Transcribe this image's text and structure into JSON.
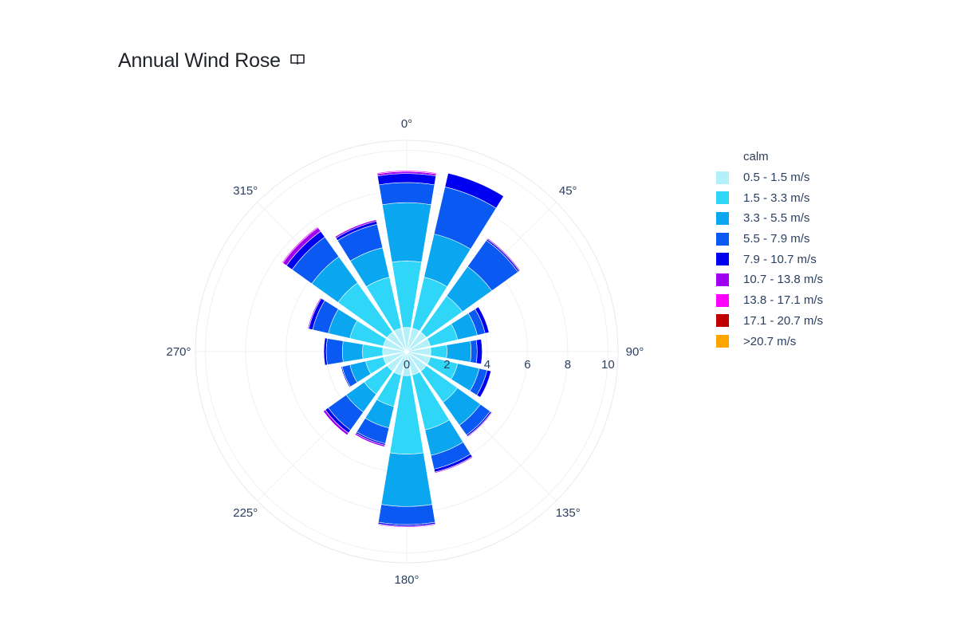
{
  "title": "Annual Wind Rose",
  "title_icon": "book-icon",
  "chart_data": {
    "type": "barpolar",
    "title": "Annual Wind Rose",
    "angular_axis": {
      "direction": "clockwise",
      "rotation": 90,
      "tick_labels": [
        "0°",
        "45°",
        "90°",
        "135°",
        "180°",
        "225°",
        "270°",
        "315°"
      ]
    },
    "radial_axis": {
      "range": [
        0,
        10.5
      ],
      "tick_values": [
        0,
        2,
        4,
        6,
        8,
        10
      ],
      "tick_labels": [
        "0",
        "2",
        "4",
        "6",
        "8",
        "10"
      ]
    },
    "directions_deg": [
      0,
      22.5,
      45,
      67.5,
      90,
      112.5,
      135,
      157.5,
      180,
      202.5,
      225,
      247.5,
      270,
      292.5,
      315,
      337.5
    ],
    "series": [
      {
        "name": "calm",
        "color": "#ffffff",
        "values": [
          0,
          0,
          0,
          0,
          0,
          0,
          0,
          0,
          0,
          0,
          0,
          0,
          0,
          0,
          0,
          0
        ]
      },
      {
        "name": "0.5 - 1.5 m/s",
        "color": "#b3f0fa",
        "values": [
          1.2,
          1.2,
          1.2,
          1.2,
          1.2,
          1.2,
          1.2,
          1.2,
          1.2,
          1.2,
          1.2,
          1.2,
          1.2,
          1.2,
          1.2,
          1.2
        ]
      },
      {
        "name": "1.5 - 3.3 m/s",
        "color": "#2fd6f7",
        "values": [
          3.3,
          2.6,
          2.2,
          1.4,
          0.8,
          1.4,
          1.9,
          2.8,
          3.9,
          1.6,
          1.4,
          0.9,
          1.0,
          1.7,
          3.0,
          2.6
        ]
      },
      {
        "name": "3.3 - 5.5 m/s",
        "color": "#0aa7f0",
        "values": [
          2.9,
          2.2,
          1.8,
          1.0,
          1.2,
          1.1,
          1.4,
          1.3,
          2.6,
          1.1,
          1.1,
          0.8,
          1.0,
          1.1,
          1.6,
          1.5
        ]
      },
      {
        "name": "5.5 - 7.9 m/s",
        "color": "#0a59f2",
        "values": [
          1.0,
          2.4,
          1.6,
          0.4,
          0.3,
          0.4,
          0.6,
          0.7,
          0.9,
          0.8,
          1.1,
          0.4,
          0.8,
          0.8,
          1.2,
          1.2
        ]
      },
      {
        "name": "7.9 - 10.7 m/s",
        "color": "#0000f0",
        "values": [
          0.45,
          0.7,
          0.08,
          0.2,
          0.25,
          0.2,
          0.08,
          0.15,
          0.08,
          0.08,
          0.18,
          0.05,
          0.12,
          0.2,
          0.35,
          0.15
        ]
      },
      {
        "name": "10.7 - 13.8 m/s",
        "color": "#a000f0",
        "values": [
          0.1,
          0,
          0.05,
          0,
          0,
          0,
          0.04,
          0.05,
          0.05,
          0.08,
          0.12,
          0,
          0,
          0.05,
          0.22,
          0.08
        ]
      },
      {
        "name": "13.8 - 17.1 m/s",
        "color": "#ff00ff",
        "values": [
          0.05,
          0,
          0,
          0,
          0,
          0,
          0,
          0,
          0.02,
          0,
          0,
          0,
          0,
          0,
          0.05,
          0
        ]
      },
      {
        "name": "17.1 - 20.7 m/s",
        "color": "#bf0000",
        "values": [
          0,
          0,
          0,
          0,
          0,
          0,
          0,
          0,
          0,
          0,
          0,
          0,
          0,
          0,
          0,
          0
        ]
      },
      {
        "name": ">20.7 m/s",
        "color": "#ffa500",
        "values": [
          0,
          0,
          0,
          0,
          0,
          0,
          0,
          0,
          0,
          0,
          0,
          0,
          0,
          0,
          0,
          0
        ]
      }
    ],
    "legend_position": "right"
  }
}
